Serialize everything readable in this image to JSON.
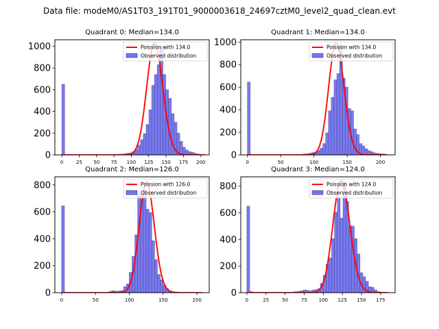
{
  "chart_data": {
    "type": "bar",
    "suptitle": "Data file: modeM0/AS1T03_191T01_9000003618_24697cztM0_level2_quad_clean.evt",
    "colors": {
      "bar_fill": "#7373f0",
      "bar_edge": "#3a3a7a",
      "poisson_line": "#ff0000"
    },
    "panels": [
      {
        "title": "Quadrant 0: Median=134.0",
        "legend": [
          "Poission with 134.0",
          "Observed distribution"
        ],
        "legend_position": "upper-right",
        "xlim": [
          -10,
          212
        ],
        "ylim": [
          0,
          1060
        ],
        "xticks": [
          0,
          25,
          50,
          75,
          100,
          125,
          150,
          175,
          200
        ],
        "yticks": [
          0,
          200,
          400,
          600,
          800,
          1000
        ],
        "median": 134.0,
        "poisson_peak": 1030,
        "bin_width": 4.04,
        "bins_start": 0,
        "values": [
          650,
          3,
          2,
          2,
          2,
          2,
          2,
          2,
          2,
          2,
          2,
          2,
          2,
          2,
          2,
          3,
          3,
          3,
          4,
          5,
          6,
          7,
          10,
          15,
          18,
          30,
          48,
          90,
          140,
          195,
          280,
          415,
          640,
          740,
          830,
          1000,
          740,
          600,
          520,
          380,
          300,
          200,
          125,
          70,
          45,
          30,
          24,
          14,
          8,
          5,
          4
        ]
      },
      {
        "title": "Quadrant 1: Median=134.0",
        "legend": [
          "Poission with 134.0",
          "Observed distribution"
        ],
        "legend_position": "upper-right",
        "xlim": [
          -10,
          222
        ],
        "ylim": [
          0,
          1020
        ],
        "xticks": [
          0,
          50,
          100,
          150,
          200
        ],
        "yticks": [
          0,
          200,
          400,
          600,
          800,
          1000
        ],
        "median": 134.0,
        "poisson_peak": 990,
        "bin_width": 4.2,
        "bins_start": 0,
        "values": [
          645,
          3,
          2,
          2,
          2,
          2,
          2,
          2,
          2,
          2,
          2,
          2,
          2,
          2,
          2,
          3,
          3,
          3,
          4,
          5,
          8,
          10,
          14,
          20,
          25,
          40,
          60,
          100,
          195,
          390,
          510,
          665,
          720,
          970,
          680,
          600,
          410,
          390,
          230,
          180,
          100,
          80,
          55,
          38,
          28,
          18,
          14,
          10,
          8,
          6
        ]
      },
      {
        "title": "Quadrant 2: Median=126.0",
        "legend": [
          "Poission with 126.0",
          "Observed distribution"
        ],
        "legend_position": "upper-right",
        "xlim": [
          -10,
          218
        ],
        "ylim": [
          0,
          860
        ],
        "xticks": [
          0,
          50,
          100,
          150,
          200
        ],
        "yticks": [
          0,
          200,
          400,
          600,
          800
        ],
        "median": 126.0,
        "poisson_peak": 820,
        "bin_width": 4.16,
        "bins_start": 0,
        "values": [
          645,
          3,
          2,
          2,
          2,
          2,
          2,
          2,
          2,
          2,
          2,
          2,
          2,
          2,
          2,
          3,
          4,
          10,
          15,
          10,
          12,
          15,
          45,
          65,
          150,
          270,
          430,
          730,
          730,
          760,
          620,
          595,
          385,
          245,
          135,
          95,
          55,
          30,
          15,
          8,
          5,
          4,
          3,
          3,
          3,
          3,
          3,
          3,
          3,
          3
        ]
      },
      {
        "title": "Quadrant 3: Median=124.0",
        "legend": [
          "Poission with 124.0",
          "Observed distribution"
        ],
        "legend_position": "upper-right",
        "xlim": [
          -8,
          194
        ],
        "ylim": [
          0,
          870
        ],
        "xticks": [
          0,
          25,
          50,
          75,
          100,
          125,
          150,
          175
        ],
        "yticks": [
          0,
          200,
          400,
          600,
          800
        ],
        "median": 124.0,
        "poisson_peak": 840,
        "bin_width": 3.7,
        "bins_start": 0,
        "values": [
          650,
          8,
          4,
          3,
          3,
          3,
          3,
          3,
          3,
          3,
          3,
          3,
          3,
          3,
          3,
          3,
          5,
          8,
          10,
          15,
          20,
          18,
          12,
          20,
          22,
          30,
          70,
          130,
          215,
          260,
          405,
          605,
          715,
          560,
          835,
          685,
          500,
          500,
          405,
          290,
          150,
          120,
          85,
          45,
          40,
          20,
          8,
          5,
          4,
          3
        ]
      }
    ]
  }
}
